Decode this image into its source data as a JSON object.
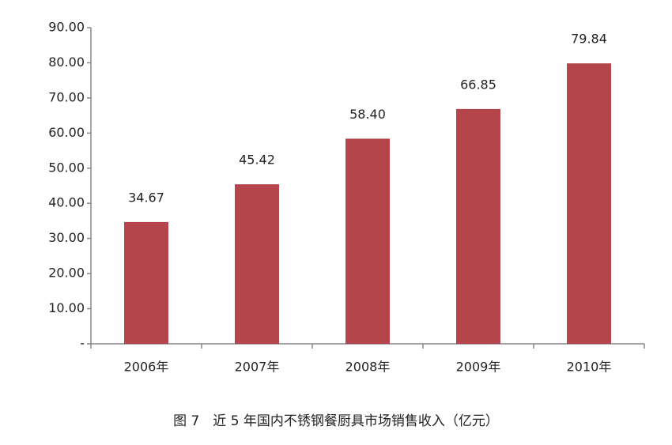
{
  "chart_data": {
    "type": "bar",
    "title": "图 7　近 5 年国内不锈钢餐厨具市场销售收入（亿元）",
    "categories": [
      "2006年",
      "2007年",
      "2008年",
      "2009年",
      "2010年"
    ],
    "values": [
      34.67,
      45.42,
      58.4,
      66.85,
      79.84
    ],
    "value_labels": [
      "34.67",
      "45.42",
      "58.40",
      "66.85",
      "79.84"
    ],
    "color": "#b4464b",
    "ylim": [
      0,
      90
    ],
    "yticks": [
      {
        "value": 0,
        "label": "-"
      },
      {
        "value": 10,
        "label": "10.00"
      },
      {
        "value": 20,
        "label": "20.00"
      },
      {
        "value": 30,
        "label": "30.00"
      },
      {
        "value": 40,
        "label": "40.00"
      },
      {
        "value": 50,
        "label": "50.00"
      },
      {
        "value": 60,
        "label": "60.00"
      },
      {
        "value": 70,
        "label": "70.00"
      },
      {
        "value": 80,
        "label": "80.00"
      },
      {
        "value": 90,
        "label": "90.00"
      }
    ],
    "grid": false
  }
}
